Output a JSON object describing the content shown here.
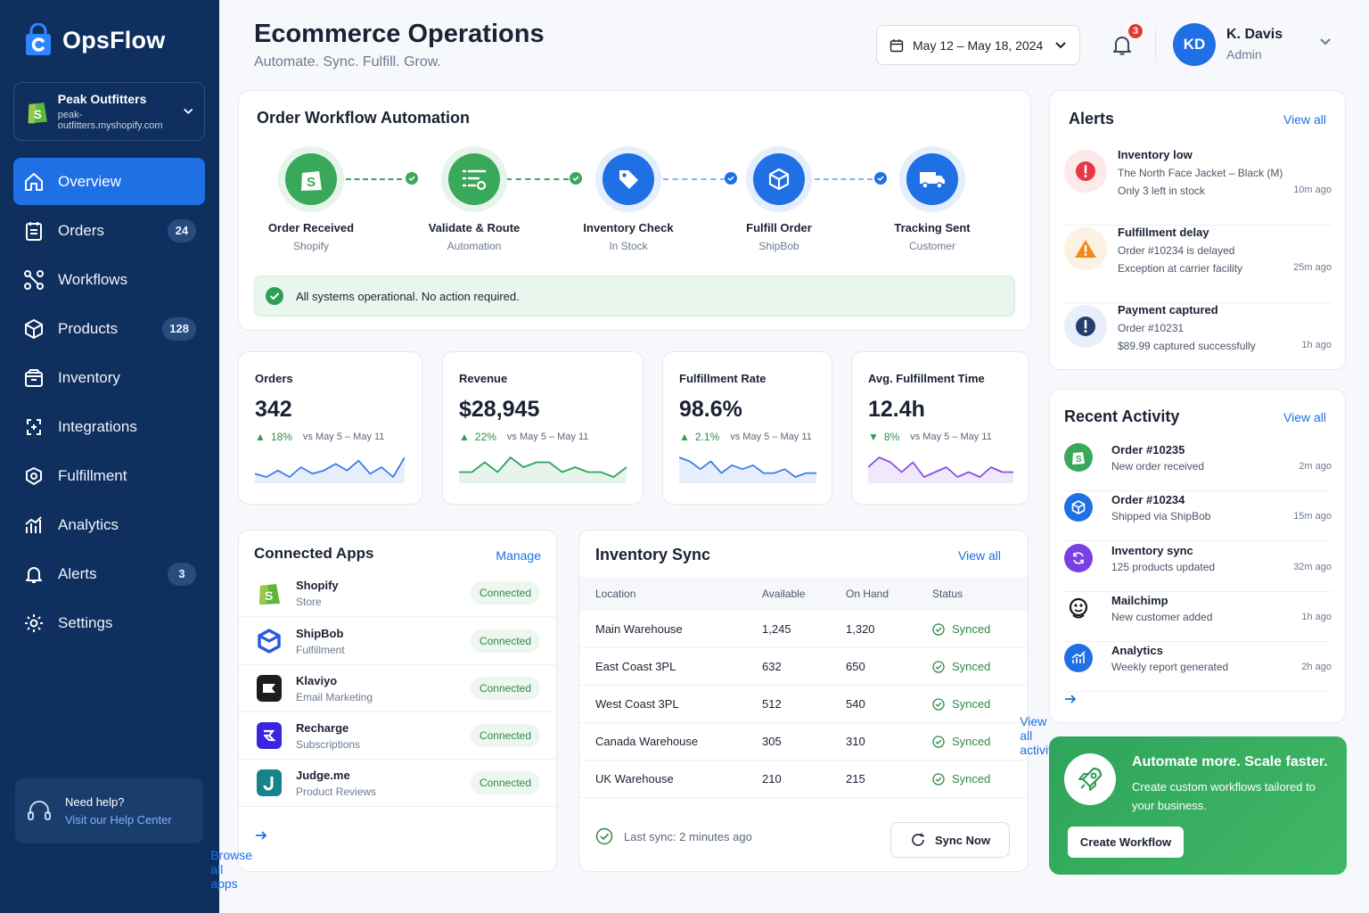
{
  "app": {
    "name": "OpsFlow"
  },
  "store": {
    "name": "Peak Outfitters",
    "url": "peak-outfitters.myshopify.com"
  },
  "nav": [
    {
      "label": "Overview",
      "icon": "home-icon",
      "active": true
    },
    {
      "label": "Orders",
      "icon": "clipboard-icon",
      "badge": "24"
    },
    {
      "label": "Workflows",
      "icon": "workflow-icon"
    },
    {
      "label": "Products",
      "icon": "box-icon",
      "badge": "128"
    },
    {
      "label": "Inventory",
      "icon": "inventory-icon"
    },
    {
      "label": "Integrations",
      "icon": "integrations-icon"
    },
    {
      "label": "Fulfillment",
      "icon": "fulfillment-icon"
    },
    {
      "label": "Analytics",
      "icon": "analytics-icon"
    },
    {
      "label": "Alerts",
      "icon": "bell-icon",
      "badge": "3"
    },
    {
      "label": "Settings",
      "icon": "gear-icon"
    }
  ],
  "help": {
    "title": "Need help?",
    "link": "Visit our Help Center"
  },
  "header": {
    "title": "Ecommerce Operations",
    "subtitle": "Automate. Sync. Fulfill. Grow.",
    "date_range": "May 12 – May 18, 2024",
    "notifications": "3"
  },
  "user": {
    "initials": "KD",
    "name": "K. Davis",
    "role": "Admin"
  },
  "workflow": {
    "title": "Order Workflow Automation",
    "steps": [
      {
        "name": "Order Received",
        "sub": "Shopify",
        "color": "#3aa85a"
      },
      {
        "name": "Validate & Route",
        "sub": "Automation",
        "color": "#3aa85a"
      },
      {
        "name": "Inventory Check",
        "sub": "In Stock",
        "color": "#1f6fe5"
      },
      {
        "name": "Fulfill Order",
        "sub": "ShipBob",
        "color": "#1f6fe5"
      },
      {
        "name": "Tracking Sent",
        "sub": "Customer",
        "color": "#1f6fe5"
      }
    ],
    "status": "All systems operational. No action required."
  },
  "kpis": [
    {
      "label": "Orders",
      "value": "342",
      "delta": "18%",
      "direction": "up",
      "vs": "vs May 5 – May 11",
      "color": "#3d7bea",
      "spark": [
        6,
        7,
        5,
        7,
        4,
        6,
        5,
        3,
        5,
        2,
        6,
        4,
        7,
        1
      ]
    },
    {
      "label": "Revenue",
      "value": "$28,945",
      "delta": "22%",
      "direction": "up",
      "vs": "vs May 5 – May 11",
      "color": "#2ea559",
      "spark": [
        5,
        5,
        3,
        5,
        2,
        4,
        3,
        3,
        5,
        4,
        5,
        5,
        6,
        4
      ]
    },
    {
      "label": "Fulfillment Rate",
      "value": "98.6%",
      "delta": "2.1%",
      "direction": "up",
      "vs": "vs May 5 – May 11",
      "color": "#3d7bea",
      "spark": [
        2,
        3,
        5,
        3,
        6,
        4,
        5,
        4,
        6,
        6,
        5,
        7,
        6,
        6
      ]
    },
    {
      "label": "Avg. Fulfillment Time",
      "value": "12.4h",
      "delta": "8%",
      "direction": "down",
      "vs": "vs May 5 – May 11",
      "color": "#8a4ee0",
      "spark": [
        4,
        2,
        3,
        5,
        3,
        6,
        5,
        4,
        6,
        5,
        6,
        4,
        5,
        5
      ]
    }
  ],
  "apps": {
    "title": "Connected Apps",
    "manage": "Manage",
    "items": [
      {
        "name": "Shopify",
        "sub": "Store",
        "status": "Connected",
        "icon": "shopify-icon"
      },
      {
        "name": "ShipBob",
        "sub": "Fulfillment",
        "status": "Connected",
        "icon": "shipbob-icon"
      },
      {
        "name": "Klaviyo",
        "sub": "Email Marketing",
        "status": "Connected",
        "icon": "klaviyo-icon"
      },
      {
        "name": "Recharge",
        "sub": "Subscriptions",
        "status": "Connected",
        "icon": "recharge-icon"
      },
      {
        "name": "Judge.me",
        "sub": "Product Reviews",
        "status": "Connected",
        "icon": "judgeme-icon"
      }
    ],
    "browse": "Browse all apps"
  },
  "inventory": {
    "title": "Inventory Sync",
    "view_all": "View all",
    "columns": [
      "Location",
      "Available",
      "On Hand",
      "Status"
    ],
    "rows": [
      {
        "location": "Main Warehouse",
        "available": "1,245",
        "on_hand": "1,320",
        "status": "Synced"
      },
      {
        "location": "East Coast 3PL",
        "available": "632",
        "on_hand": "650",
        "status": "Synced"
      },
      {
        "location": "West Coast 3PL",
        "available": "512",
        "on_hand": "540",
        "status": "Synced"
      },
      {
        "location": "Canada Warehouse",
        "available": "305",
        "on_hand": "310",
        "status": "Synced"
      },
      {
        "location": "UK Warehouse",
        "available": "210",
        "on_hand": "215",
        "status": "Synced"
      }
    ],
    "last_sync": "Last sync: 2 minutes ago",
    "sync_button": "Sync Now"
  },
  "alerts": {
    "title": "Alerts",
    "view_all": "View all",
    "items": [
      {
        "title": "Inventory low",
        "line1": "The North Face Jacket – Black (M)",
        "line2": "Only 3 left in stock",
        "time": "10m ago",
        "kind": "error"
      },
      {
        "title": "Fulfillment delay",
        "line1": "Order #10234 is delayed",
        "line2": "Exception at carrier facility",
        "time": "25m ago",
        "kind": "warning"
      },
      {
        "title": "Payment captured",
        "line1": "Order #10231",
        "line2": "$89.99 captured successfully",
        "time": "1h ago",
        "kind": "info"
      }
    ]
  },
  "activity": {
    "title": "Recent Activity",
    "view_all": "View all",
    "items": [
      {
        "title": "Order #10235",
        "sub": "New order received",
        "time": "2m ago",
        "icon": "shopify-icon"
      },
      {
        "title": "Order #10234",
        "sub": "Shipped via ShipBob",
        "time": "15m ago",
        "icon": "package-icon"
      },
      {
        "title": "Inventory sync",
        "sub": "125 products updated",
        "time": "32m ago",
        "icon": "sync-icon"
      },
      {
        "title": "Mailchimp",
        "sub": "New customer added",
        "time": "1h ago",
        "icon": "mailchimp-icon"
      },
      {
        "title": "Analytics",
        "sub": "Weekly report generated",
        "time": "2h ago",
        "icon": "chart-icon"
      }
    ],
    "view_all_activity": "View all activity"
  },
  "promo": {
    "title": "Automate more. Scale faster.",
    "text": "Create custom workflows tailored to your business.",
    "button": "Create Workflow"
  }
}
